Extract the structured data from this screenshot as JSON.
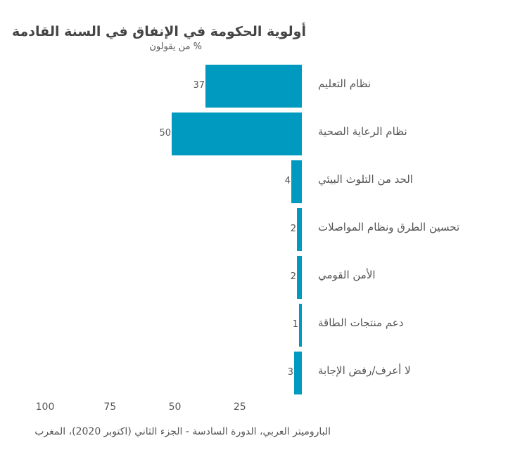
{
  "chart_data": {
    "type": "bar",
    "orientation": "horizontal",
    "title": "أولوية الحكومة في الإنفاق في السنة القادمة",
    "subtitle": "% من يقولون",
    "categories": [
      "نظام التعليم",
      "نظام الرعاية الصحية",
      "الحد من التلوث البيئي",
      "تحسين الطرق ونظام المواصلات",
      "الأمن القومي",
      "دعم منتجات الطاقة",
      "لا أعرف/رفض الإجابة"
    ],
    "values": [
      37,
      50,
      4,
      2,
      2,
      1,
      3
    ],
    "xlabel": "",
    "ylabel": "",
    "xlim": [
      0,
      100
    ],
    "x_direction": "reversed",
    "x_ticks": [
      "100",
      "75",
      "50",
      "25"
    ],
    "grid": false,
    "legend": null,
    "bar_color": "#0099bf",
    "source": "الباروميتر العربي، الدورة السادسة - الجزء الثاني (اكتوبر 2020)، المغرب"
  }
}
